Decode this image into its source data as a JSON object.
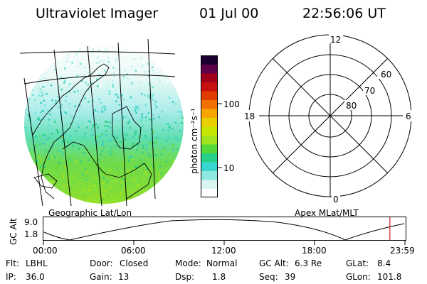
{
  "header": {
    "title": "Ultraviolet Imager",
    "date": "01 Jul 00",
    "time": "22:56:06 UT"
  },
  "map_panel": {
    "caption": "Geographic Lat/Lon"
  },
  "colorbar": {
    "unit_label": "photon cm⁻²s⁻¹",
    "ticks": [
      "100",
      "10"
    ],
    "colors": [
      "#ffffff",
      "#d8f5f0",
      "#8fe8e0",
      "#39d6cf",
      "#26d088",
      "#55d93a",
      "#a2e31f",
      "#c8e600",
      "#e8d000",
      "#f7a600",
      "#f07000",
      "#e23c00",
      "#c81010",
      "#a0001a",
      "#60004a",
      "#1a0030"
    ]
  },
  "polar_panel": {
    "caption": "Apex MLat/MLT",
    "mlt_labels": {
      "top": "12",
      "left": "18",
      "right": "6",
      "bottom": "0"
    },
    "lat_labels": [
      "60",
      "70",
      "80"
    ]
  },
  "timeline": {
    "axis_label": "GC Alt",
    "y_ticks": [
      "9.0",
      "1.8"
    ],
    "x_ticks": [
      "00:00",
      "06:00",
      "12:00",
      "18:00",
      "23:59"
    ],
    "current_marker_hour": 23.0
  },
  "info": {
    "flt_label": "Flt:",
    "flt_value": "LBHL",
    "ip_label": "IP:",
    "ip_value": "36.0",
    "door_label": "Door:",
    "door_value": "Closed",
    "gain_label": "Gain:",
    "gain_value": "13",
    "mode_label": "Mode:",
    "mode_value": "Normal",
    "dsp_label": "Dsp:",
    "dsp_value": "1.8",
    "gcalt_label": "GC Alt:",
    "gcalt_value": "6.3 Re",
    "seq_label": "Seq:",
    "seq_value": "39",
    "glat_label": "GLat:",
    "glat_value": "8.4",
    "glon_label": "GLon:",
    "glon_value": "101.8"
  }
}
